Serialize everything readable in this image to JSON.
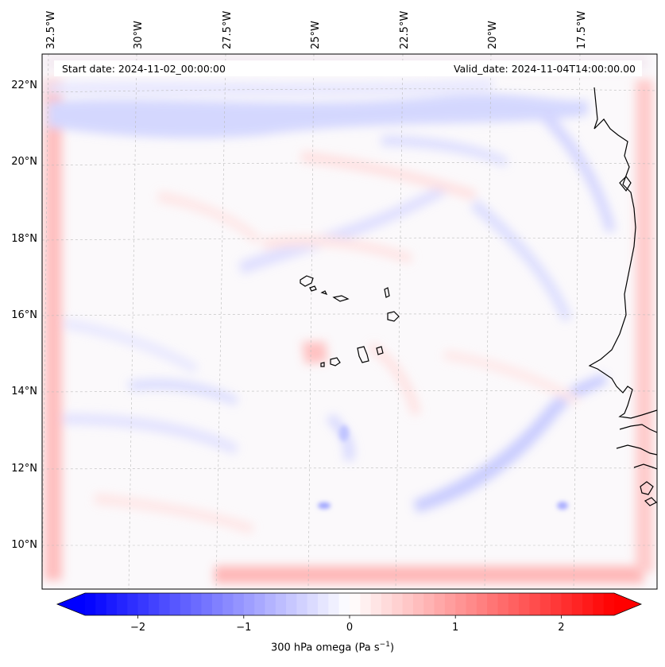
{
  "header": {
    "start_date": "Start date: 2024-11-02_00:00:00",
    "valid_date": "Valid_date: 2024-11-04T14:00:00.00"
  },
  "map": {
    "lon_labels": [
      "32.5°W",
      "30°W",
      "27.5°W",
      "25°W",
      "22.5°W",
      "20°W",
      "17.5°W"
    ],
    "lat_labels": [
      "22°N",
      "20°N",
      "18°N",
      "16°N",
      "14°N",
      "12°N",
      "10°N"
    ],
    "gridlines": true,
    "field_colors": {
      "negative": "#0000ff",
      "zero": "#ffffff",
      "positive": "#ff0000"
    }
  },
  "colorbar": {
    "ticks": [
      "−2",
      "−1",
      "0",
      "1",
      "2"
    ],
    "tick_values": [
      -2,
      -1,
      0,
      1,
      2
    ],
    "range": [
      -2.5,
      2.5
    ],
    "label_text": "300 hPa omega (Pa s",
    "label_sup": "−1",
    "label_close": ")",
    "extend": "both",
    "colormap": "bwr"
  }
}
